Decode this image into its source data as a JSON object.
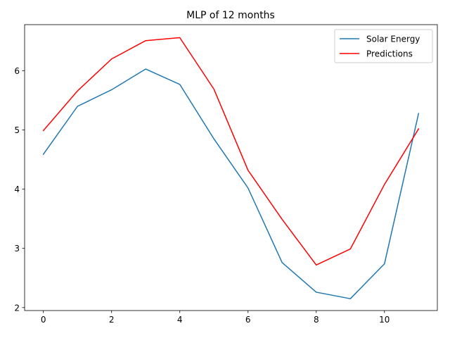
{
  "chart_data": {
    "type": "line",
    "title": "MLP of 12 months",
    "xlabel": "",
    "ylabel": "",
    "x": [
      0,
      1,
      2,
      3,
      4,
      5,
      6,
      7,
      8,
      9,
      10,
      11
    ],
    "xlim": [
      -0.55,
      11.55
    ],
    "ylim": [
      1.95,
      6.78
    ],
    "xticks": [
      0,
      2,
      4,
      6,
      8,
      10
    ],
    "yticks": [
      2,
      3,
      4,
      5,
      6
    ],
    "grid": false,
    "legend_position": "top-right",
    "series": [
      {
        "name": "Solar Energy",
        "color": "#1f77b4",
        "values": [
          4.59,
          5.4,
          5.68,
          6.03,
          5.77,
          4.85,
          4.02,
          2.76,
          2.26,
          2.15,
          2.74,
          5.28
        ]
      },
      {
        "name": "Predictions",
        "color": "#ff0000",
        "values": [
          4.99,
          5.66,
          6.2,
          6.51,
          6.56,
          5.69,
          4.32,
          3.49,
          2.72,
          2.99,
          4.08,
          5.02
        ]
      }
    ]
  }
}
